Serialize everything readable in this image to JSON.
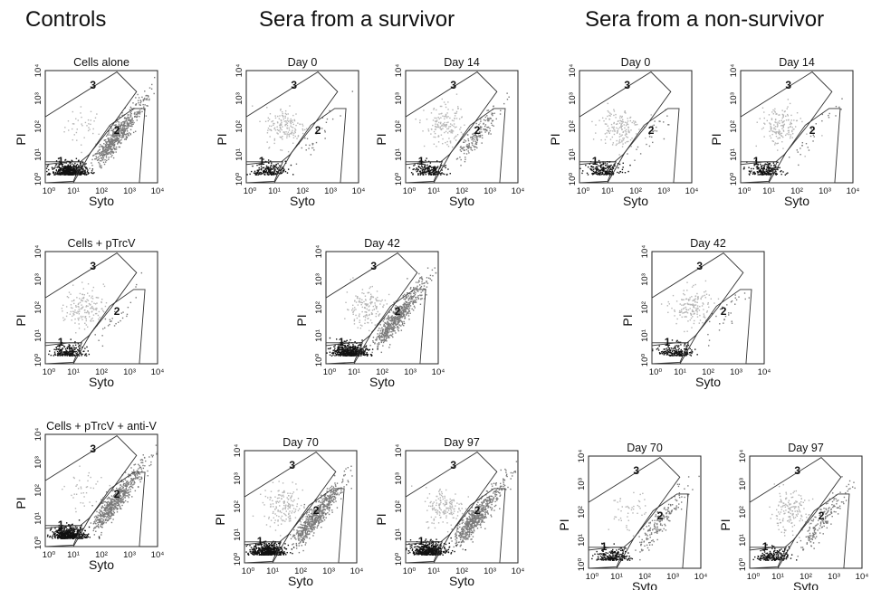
{
  "groups": [
    "Controls",
    "Sera from a survivor",
    "Sera from a non-survivor"
  ],
  "axis": {
    "x_label": "Syto",
    "y_label": "PI",
    "ticks": [
      "10⁰",
      "10¹",
      "10²",
      "10³",
      "10⁴"
    ]
  },
  "gate_labels": [
    "1",
    "2",
    "3"
  ],
  "chart_data": [
    {
      "type": "scatter",
      "group": "Controls",
      "title": "Cells alone",
      "xlabel": "Syto",
      "ylabel": "PI",
      "xscale": "log",
      "yscale": "log",
      "xlim": [
        1,
        10000
      ],
      "ylim": [
        1,
        10000
      ],
      "gates": [
        "1",
        "2",
        "3"
      ],
      "populations": {
        "gate1": "dense",
        "gate2": "dense",
        "gate3": "sparse"
      }
    },
    {
      "type": "scatter",
      "group": "Sera from a survivor",
      "title": "Day 0",
      "xlabel": "Syto",
      "ylabel": "PI",
      "xscale": "log",
      "yscale": "log",
      "xlim": [
        1,
        10000
      ],
      "ylim": [
        1,
        10000
      ],
      "gates": [
        "1",
        "2",
        "3"
      ],
      "populations": {
        "gate1": "moderate",
        "gate2": "sparse",
        "gate3": "moderate"
      }
    },
    {
      "type": "scatter",
      "group": "Sera from a survivor",
      "title": "Day 14",
      "xlabel": "Syto",
      "ylabel": "PI",
      "xscale": "log",
      "yscale": "log",
      "xlim": [
        1,
        10000
      ],
      "ylim": [
        1,
        10000
      ],
      "gates": [
        "1",
        "2",
        "3"
      ],
      "populations": {
        "gate1": "moderate",
        "gate2": "moderate",
        "gate3": "moderate"
      }
    },
    {
      "type": "scatter",
      "group": "Sera from a non-survivor",
      "title": "Day 0",
      "xlabel": "Syto",
      "ylabel": "PI",
      "xscale": "log",
      "yscale": "log",
      "xlim": [
        1,
        10000
      ],
      "ylim": [
        1,
        10000
      ],
      "gates": [
        "1",
        "2",
        "3"
      ],
      "populations": {
        "gate1": "moderate",
        "gate2": "sparse",
        "gate3": "moderate"
      }
    },
    {
      "type": "scatter",
      "group": "Sera from a non-survivor",
      "title": "Day 14",
      "xlabel": "Syto",
      "ylabel": "PI",
      "xscale": "log",
      "yscale": "log",
      "xlim": [
        1,
        10000
      ],
      "ylim": [
        1,
        10000
      ],
      "gates": [
        "1",
        "2",
        "3"
      ],
      "populations": {
        "gate1": "moderate",
        "gate2": "sparse",
        "gate3": "moderate"
      }
    },
    {
      "type": "scatter",
      "group": "Controls",
      "title": "Cells + pTrcV",
      "xlabel": "Syto",
      "ylabel": "PI",
      "xscale": "log",
      "yscale": "log",
      "xlim": [
        1,
        10000
      ],
      "ylim": [
        1,
        10000
      ],
      "gates": [
        "1",
        "2",
        "3"
      ],
      "populations": {
        "gate1": "moderate",
        "gate2": "sparse",
        "gate3": "moderate"
      }
    },
    {
      "type": "scatter",
      "group": "Sera from a survivor",
      "title": "Day 42",
      "xlabel": "Syto",
      "ylabel": "PI",
      "xscale": "log",
      "yscale": "log",
      "xlim": [
        1,
        10000
      ],
      "ylim": [
        1,
        10000
      ],
      "gates": [
        "1",
        "2",
        "3"
      ],
      "populations": {
        "gate1": "dense",
        "gate2": "dense",
        "gate3": "moderate"
      }
    },
    {
      "type": "scatter",
      "group": "Sera from a non-survivor",
      "title": "Day 42",
      "xlabel": "Syto",
      "ylabel": "PI",
      "xscale": "log",
      "yscale": "log",
      "xlim": [
        1,
        10000
      ],
      "ylim": [
        1,
        10000
      ],
      "gates": [
        "1",
        "2",
        "3"
      ],
      "populations": {
        "gate1": "moderate",
        "gate2": "sparse",
        "gate3": "moderate"
      }
    },
    {
      "type": "scatter",
      "group": "Controls",
      "title": "Cells + pTrcV + anti-V",
      "xlabel": "Syto",
      "ylabel": "PI",
      "xscale": "log",
      "yscale": "log",
      "xlim": [
        1,
        10000
      ],
      "ylim": [
        1,
        10000
      ],
      "gates": [
        "1",
        "2",
        "3"
      ],
      "populations": {
        "gate1": "dense",
        "gate2": "dense",
        "gate3": "sparse"
      }
    },
    {
      "type": "scatter",
      "group": "Sera from a survivor",
      "title": "Day 70",
      "xlabel": "Syto",
      "ylabel": "PI",
      "xscale": "log",
      "yscale": "log",
      "xlim": [
        1,
        10000
      ],
      "ylim": [
        1,
        10000
      ],
      "gates": [
        "1",
        "2",
        "3"
      ],
      "populations": {
        "gate1": "dense",
        "gate2": "dense",
        "gate3": "moderate"
      }
    },
    {
      "type": "scatter",
      "group": "Sera from a survivor",
      "title": "Day 97",
      "xlabel": "Syto",
      "ylabel": "PI",
      "xscale": "log",
      "yscale": "log",
      "xlim": [
        1,
        10000
      ],
      "ylim": [
        1,
        10000
      ],
      "gates": [
        "1",
        "2",
        "3"
      ],
      "populations": {
        "gate1": "dense",
        "gate2": "dense",
        "gate3": "moderate"
      }
    },
    {
      "type": "scatter",
      "group": "Sera from a non-survivor",
      "title": "Day 70",
      "xlabel": "Syto",
      "ylabel": "PI",
      "xscale": "log",
      "yscale": "log",
      "xlim": [
        1,
        10000
      ],
      "ylim": [
        1,
        10000
      ],
      "gates": [
        "1",
        "2",
        "3"
      ],
      "populations": {
        "gate1": "moderate",
        "gate2": "moderate",
        "gate3": "dense"
      }
    },
    {
      "type": "scatter",
      "group": "Sera from a non-survivor",
      "title": "Day 97",
      "xlabel": "Syto",
      "ylabel": "PI",
      "xscale": "log",
      "yscale": "log",
      "xlim": [
        1,
        10000
      ],
      "ylim": [
        1,
        10000
      ],
      "gates": [
        "1",
        "2",
        "3"
      ],
      "populations": {
        "gate1": "moderate",
        "gate2": "moderate",
        "gate3": "moderate"
      }
    }
  ]
}
